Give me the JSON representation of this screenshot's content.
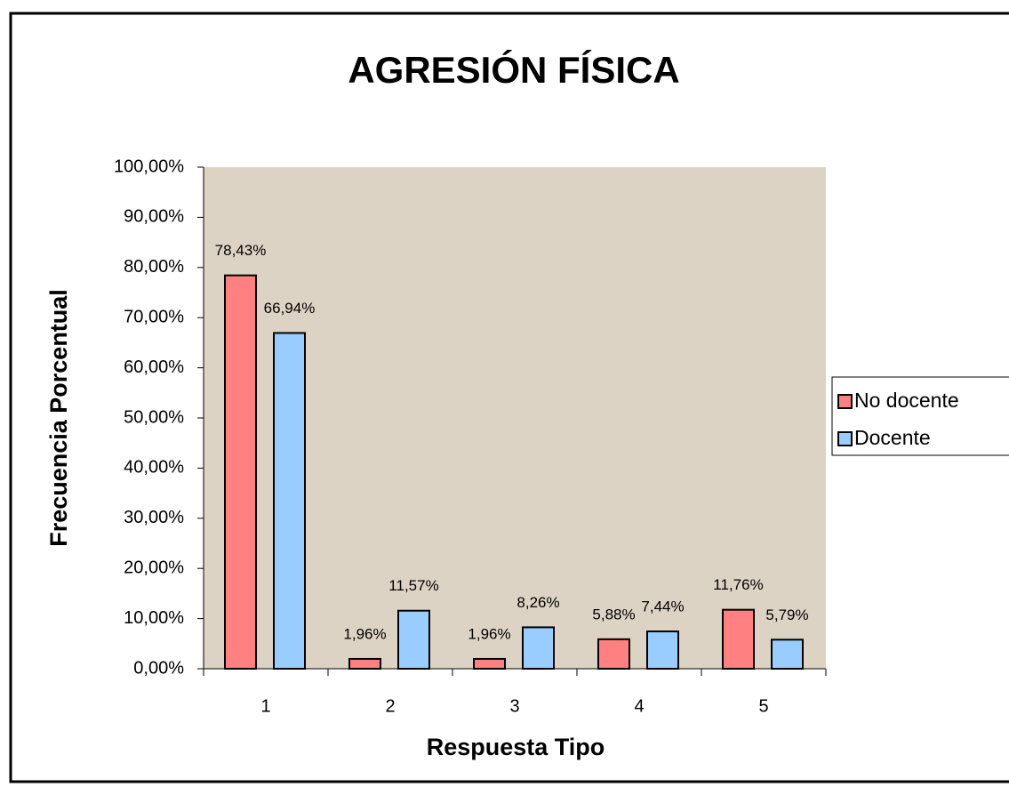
{
  "chart_data": {
    "type": "bar",
    "title": "AGRESIÓN FÍSICA",
    "x_label": "Respuesta Tipo",
    "y_label": "Frecuencia Porcentual",
    "categories": [
      "1",
      "2",
      "3",
      "4",
      "5"
    ],
    "series": [
      {
        "name": "No docente",
        "color": "#ff8080",
        "values": [
          78.43,
          1.96,
          1.96,
          5.88,
          11.76
        ],
        "value_labels": [
          "78,43%",
          "1,96%",
          "1,96%",
          "5,88%",
          "11,76%"
        ]
      },
      {
        "name": "Docente",
        "color": "#99ccff",
        "values": [
          66.94,
          11.57,
          8.26,
          7.44,
          5.79
        ],
        "value_labels": [
          "66,94%",
          "11,57%",
          "8,26%",
          "7,44%",
          "5,79%"
        ]
      }
    ],
    "ylim": [
      0,
      100
    ],
    "yticks": [
      {
        "value": 0,
        "label": "0,00%"
      },
      {
        "value": 10,
        "label": "10,00%"
      },
      {
        "value": 20,
        "label": "20,00%"
      },
      {
        "value": 30,
        "label": "30,00%"
      },
      {
        "value": 40,
        "label": "40,00%"
      },
      {
        "value": 50,
        "label": "50,00%"
      },
      {
        "value": 60,
        "label": "60,00%"
      },
      {
        "value": 70,
        "label": "70,00%"
      },
      {
        "value": 80,
        "label": "80,00%"
      },
      {
        "value": 90,
        "label": "90,00%"
      },
      {
        "value": 100,
        "label": "100,00%"
      }
    ],
    "legend": "right"
  }
}
